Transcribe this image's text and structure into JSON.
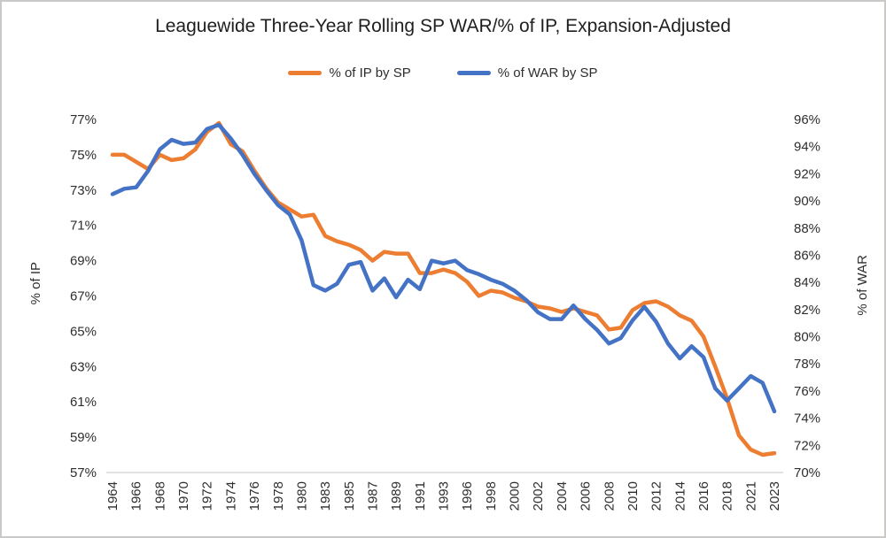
{
  "page": {
    "background": "#ffffff",
    "border_color": "#cbc9c7"
  },
  "chart_data": {
    "type": "line",
    "title": "Leaguewide Three-Year Rolling SP WAR/% of IP, Expansion-Adjusted",
    "grid": false,
    "legend_position": "top",
    "categories": [
      "1964",
      "1965",
      "1966",
      "1967",
      "1968",
      "1969",
      "1970",
      "1971",
      "1972",
      "1973",
      "1974",
      "1975",
      "1976",
      "1977",
      "1978",
      "1979",
      "1980",
      "1982",
      "1983",
      "1984",
      "1985",
      "1986",
      "1987",
      "1988",
      "1989",
      "1990",
      "1991",
      "1992",
      "1993",
      "1995",
      "1996",
      "1997",
      "1998",
      "1999",
      "2000",
      "2001",
      "2002",
      "2003",
      "2004",
      "2005",
      "2006",
      "2007",
      "2008",
      "2009",
      "2010",
      "2011",
      "2012",
      "2013",
      "2014",
      "2015",
      "2016",
      "2017",
      "2018",
      "2019",
      "2021",
      "2022",
      "2023"
    ],
    "x_tick_labels": [
      "1964",
      "1966",
      "1968",
      "1970",
      "1972",
      "1974",
      "1976",
      "1978",
      "1980",
      "1983",
      "1985",
      "1987",
      "1989",
      "1991",
      "1993",
      "1996",
      "1998",
      "2000",
      "2002",
      "2004",
      "2006",
      "2008",
      "2010",
      "2012",
      "2014",
      "2016",
      "2018",
      "2021",
      "2023"
    ],
    "left_axis": {
      "title": "% of IP",
      "max": 77,
      "min": 57,
      "ticks": [
        "77%",
        "75%",
        "73%",
        "71%",
        "69%",
        "67%",
        "65%",
        "63%",
        "61%",
        "59%",
        "57%"
      ]
    },
    "right_axis": {
      "title": "% of WAR",
      "max": 96,
      "min": 70,
      "ticks": [
        "96%",
        "94%",
        "92%",
        "90%",
        "88%",
        "86%",
        "84%",
        "82%",
        "80%",
        "78%",
        "76%",
        "74%",
        "72%",
        "70%"
      ]
    },
    "series": [
      {
        "name": "% of IP by SP",
        "axis": "left",
        "color": "#ED7D31",
        "values": [
          75.0,
          75.0,
          74.6,
          74.2,
          75.0,
          74.7,
          74.8,
          75.3,
          76.3,
          76.8,
          75.6,
          75.2,
          74.1,
          73.1,
          72.3,
          71.9,
          71.5,
          71.6,
          70.4,
          70.1,
          69.9,
          69.6,
          69.0,
          69.5,
          69.4,
          69.4,
          68.3,
          68.3,
          68.5,
          68.3,
          67.8,
          67.0,
          67.3,
          67.2,
          66.9,
          66.7,
          66.4,
          66.3,
          66.1,
          66.3,
          66.1,
          65.9,
          65.1,
          65.2,
          66.2,
          66.6,
          66.7,
          66.4,
          65.9,
          65.6,
          64.7,
          63.0,
          61.2,
          59.1,
          58.3,
          58.0,
          58.1
        ]
      },
      {
        "name": "% of WAR by SP",
        "axis": "right",
        "color": "#4472C4",
        "values": [
          90.5,
          90.9,
          91.0,
          92.2,
          93.8,
          94.5,
          94.2,
          94.3,
          95.3,
          95.6,
          94.6,
          93.4,
          92.0,
          90.8,
          89.7,
          89.0,
          87.1,
          83.8,
          83.4,
          83.9,
          85.3,
          85.5,
          83.4,
          84.3,
          82.9,
          84.2,
          83.5,
          85.6,
          85.4,
          85.6,
          84.9,
          84.6,
          84.2,
          83.9,
          83.4,
          82.7,
          81.8,
          81.3,
          81.3,
          82.3,
          81.3,
          80.5,
          79.5,
          79.9,
          81.2,
          82.2,
          81.1,
          79.5,
          78.4,
          79.3,
          78.5,
          76.2,
          75.3,
          76.2,
          77.1,
          76.6,
          74.5
        ]
      }
    ]
  }
}
